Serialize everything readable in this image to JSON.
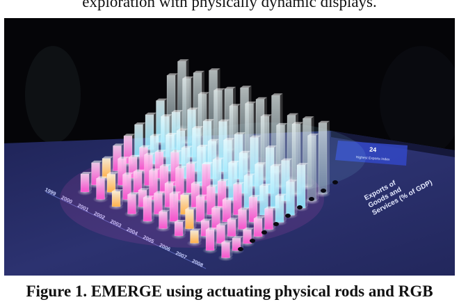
{
  "text_above": "exploration with physically dynamic displays.",
  "caption": "Figure 1. EMERGE using actuating physical rods and RGB",
  "photo": {
    "display_label": "Exports of Goods and Services (% of GDP)",
    "panel_number": "24",
    "panel_text": "Highest Exports Index",
    "year_labels": [
      "1999",
      "2000",
      "2001",
      "2002",
      "2003",
      "2004",
      "2005",
      "2006",
      "2007",
      "2008"
    ],
    "colors": {
      "table": "#2a2f6a",
      "panel": "#3246c0",
      "glow_pink": "#ff4fd0",
      "glow_cyan": "#8fe8ff",
      "glow_orange": "#ffb04a"
    }
  }
}
